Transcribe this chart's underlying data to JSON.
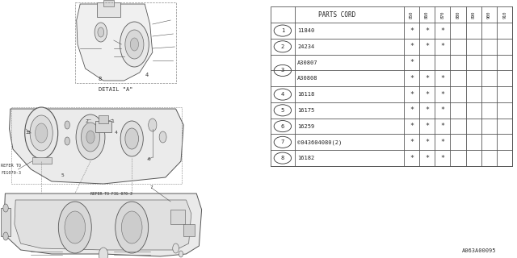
{
  "bg_color": "#ffffff",
  "table": {
    "title": "PARTS CORD",
    "col_headers": [
      "850",
      "860",
      "870",
      "880",
      "890",
      "900",
      "910"
    ],
    "rows": [
      {
        "num": "1",
        "part": "11840",
        "stars": [
          1,
          1,
          1,
          0,
          0,
          0,
          0
        ],
        "split": false
      },
      {
        "num": "2",
        "part": "24234",
        "stars": [
          1,
          1,
          1,
          0,
          0,
          0,
          0
        ],
        "split": false
      },
      {
        "num": "3",
        "part": "A30807",
        "stars": [
          1,
          0,
          0,
          0,
          0,
          0,
          0
        ],
        "split": true,
        "part2": "A30808",
        "stars2": [
          1,
          1,
          1,
          0,
          0,
          0,
          0
        ]
      },
      {
        "num": "4",
        "part": "16118",
        "stars": [
          1,
          1,
          1,
          0,
          0,
          0,
          0
        ],
        "split": false
      },
      {
        "num": "5",
        "part": "16175",
        "stars": [
          1,
          1,
          1,
          0,
          0,
          0,
          0
        ],
        "split": false
      },
      {
        "num": "6",
        "part": "16259",
        "stars": [
          1,
          1,
          1,
          0,
          0,
          0,
          0
        ],
        "split": false
      },
      {
        "num": "7",
        "part": "©043604080(2)",
        "stars": [
          1,
          1,
          1,
          0,
          0,
          0,
          0
        ],
        "split": false
      },
      {
        "num": "8",
        "part": "16182",
        "stars": [
          1,
          1,
          1,
          0,
          0,
          0,
          0
        ],
        "split": false
      }
    ]
  },
  "footer_text": "A063A00095"
}
